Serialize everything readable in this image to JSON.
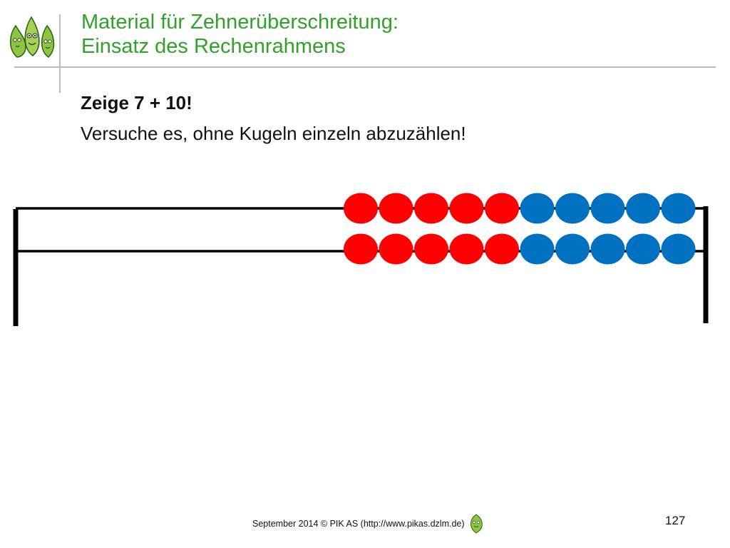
{
  "title": {
    "line1": "Material für Zehnerüberschreitung:",
    "line2": "Einsatz des Rechenrahmens",
    "color": "#33a02c"
  },
  "task": "Zeige 7 + 10!",
  "hint": "Versuche es, ohne Kugeln einzeln abzuzählen!",
  "abacus": {
    "rows": [
      {
        "red_beads": 5,
        "blue_beads": 5
      },
      {
        "red_beads": 5,
        "blue_beads": 5
      }
    ],
    "red_color": "#ff0000",
    "blue_color": "#0070c0"
  },
  "footer": {
    "text": "September 2014 © PIK AS (http://www.pikas.dzlm.de)",
    "page_number": "127"
  },
  "icons": {
    "header_logo": "pikas-leaf-mascots-icon",
    "footer_logo": "pikas-leaf-mascot-icon"
  }
}
